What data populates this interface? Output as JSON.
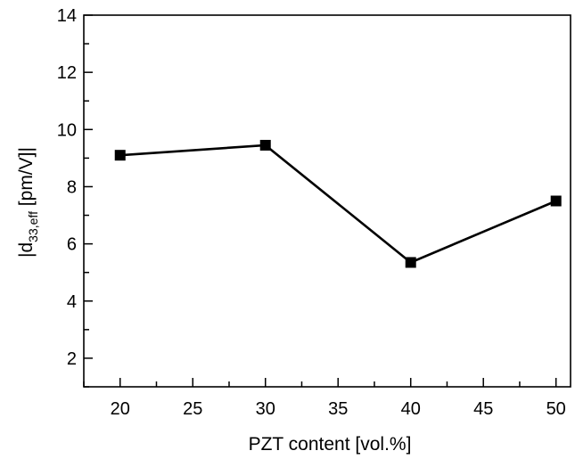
{
  "chart_data": {
    "type": "line",
    "title": "",
    "xlabel": "PZT content [vol.%]",
    "ylabel": {
      "prefix": "|d",
      "subscript": "33,eff",
      "suffix": " [pm/V]|"
    },
    "xlim": [
      17.5,
      51
    ],
    "ylim": [
      1,
      14
    ],
    "xticks": [
      20,
      25,
      30,
      35,
      40,
      45,
      50
    ],
    "yticks": [
      2,
      4,
      6,
      8,
      10,
      12,
      14
    ],
    "grid": false,
    "series": [
      {
        "x": [
          20,
          30,
          40,
          50
        ],
        "y": [
          9.1,
          9.45,
          5.35,
          7.5
        ],
        "marker": "square",
        "color": "#000000"
      }
    ]
  }
}
